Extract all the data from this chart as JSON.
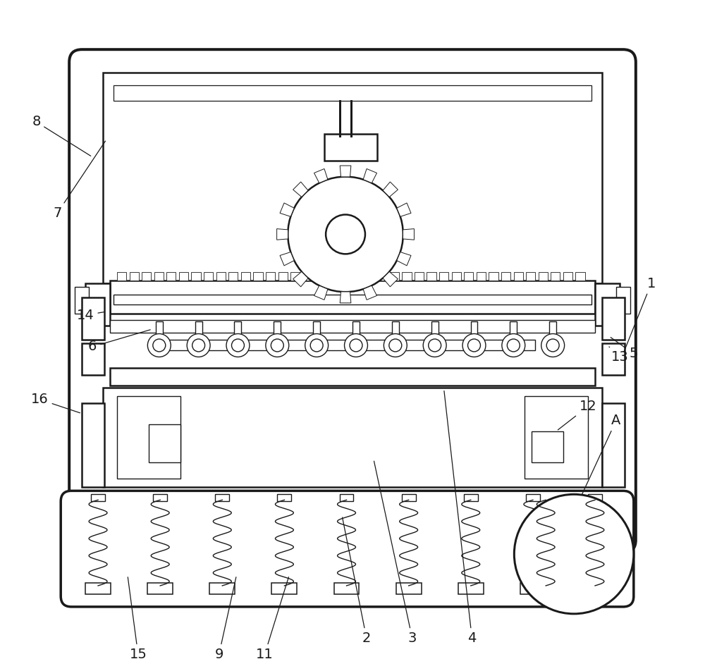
{
  "bg_color": "#ffffff",
  "line_color": "#1a1a1a",
  "line_width": 1.8,
  "thin_line": 1.0,
  "font_size": 14,
  "label_info": [
    [
      "1",
      9.25,
      5.5,
      8.85,
      4.5
    ],
    [
      "2",
      5.2,
      0.45,
      4.85,
      2.2
    ],
    [
      "3",
      5.85,
      0.45,
      5.3,
      3.0
    ],
    [
      "4",
      6.7,
      0.45,
      6.3,
      4.0
    ],
    [
      "5",
      9.0,
      4.5,
      8.65,
      4.75
    ],
    [
      "6",
      1.3,
      4.6,
      2.15,
      4.85
    ],
    [
      "7",
      0.8,
      6.5,
      1.5,
      7.55
    ],
    [
      "8",
      0.5,
      7.8,
      1.3,
      7.3
    ],
    [
      "9",
      3.1,
      0.22,
      3.35,
      1.35
    ],
    [
      "11",
      3.75,
      0.22,
      4.1,
      1.35
    ],
    [
      "12",
      8.35,
      3.75,
      7.9,
      3.4
    ],
    [
      "13",
      8.8,
      4.45,
      8.65,
      4.6
    ],
    [
      "14",
      1.2,
      5.05,
      1.5,
      5.1
    ],
    [
      "15",
      1.95,
      0.22,
      1.8,
      1.35
    ],
    [
      "16",
      0.55,
      3.85,
      1.15,
      3.65
    ],
    [
      "A",
      8.75,
      3.55,
      7.85,
      1.6
    ]
  ]
}
